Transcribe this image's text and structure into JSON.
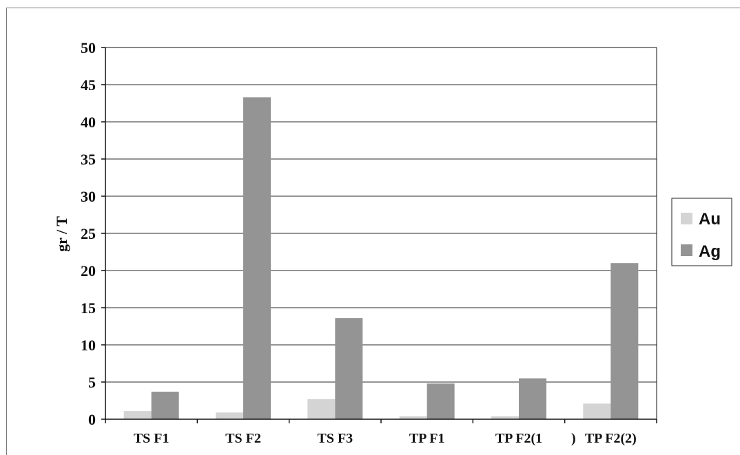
{
  "chart_data": {
    "type": "bar",
    "title": "",
    "xlabel": "",
    "ylabel": "gr / T",
    "ylim": [
      0,
      50
    ],
    "yticks": [
      0,
      5,
      10,
      15,
      20,
      25,
      30,
      35,
      40,
      45,
      50
    ],
    "grid": true,
    "legend_position": "right",
    "categories": [
      "TS F1",
      "TS F2",
      "TS F3",
      "TP F1",
      "TP F2(1",
      "TP F2(2)"
    ],
    "category_extra_mark": ")",
    "series": [
      {
        "name": "Au",
        "color": "#d4d4d4",
        "values": [
          1.1,
          0.9,
          2.7,
          0.4,
          0.4,
          2.1
        ]
      },
      {
        "name": "Ag",
        "color": "#949494",
        "values": [
          3.7,
          43.3,
          13.6,
          4.8,
          5.5,
          21.0
        ]
      }
    ]
  }
}
